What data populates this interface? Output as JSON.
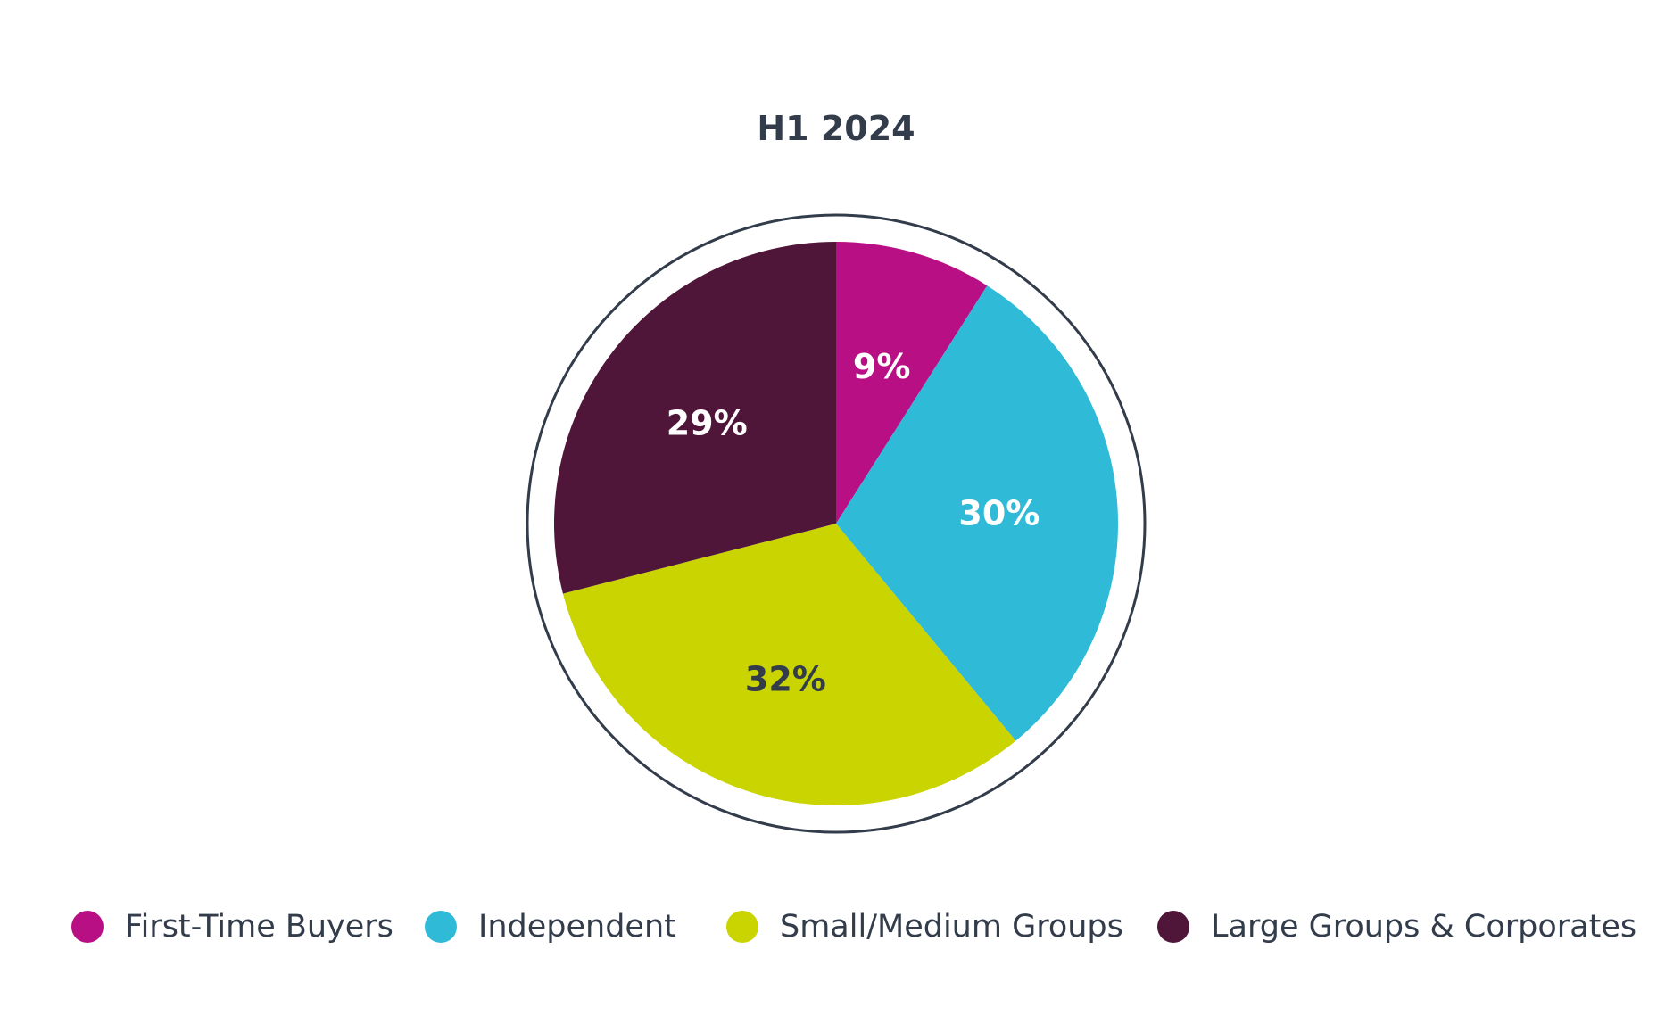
{
  "chart_data": {
    "type": "pie",
    "title": "H1 2024",
    "legend_position": "bottom",
    "slices": [
      {
        "name": "First-Time Buyers",
        "value": 9,
        "label": "9%",
        "color": "#b90f84",
        "label_color": "#ffffff"
      },
      {
        "name": "Independent",
        "value": 30,
        "label": "30%",
        "color": "#2fbad8",
        "label_color": "#ffffff"
      },
      {
        "name": "Small/Medium Groups",
        "value": 32,
        "label": "32%",
        "color": "#c9d400",
        "label_color": "#333c4a"
      },
      {
        "name": "Large Groups & Corporates",
        "value": 29,
        "label": "29%",
        "color": "#50163a",
        "label_color": "#ffffff"
      }
    ],
    "outline_color": "#333c4a"
  }
}
